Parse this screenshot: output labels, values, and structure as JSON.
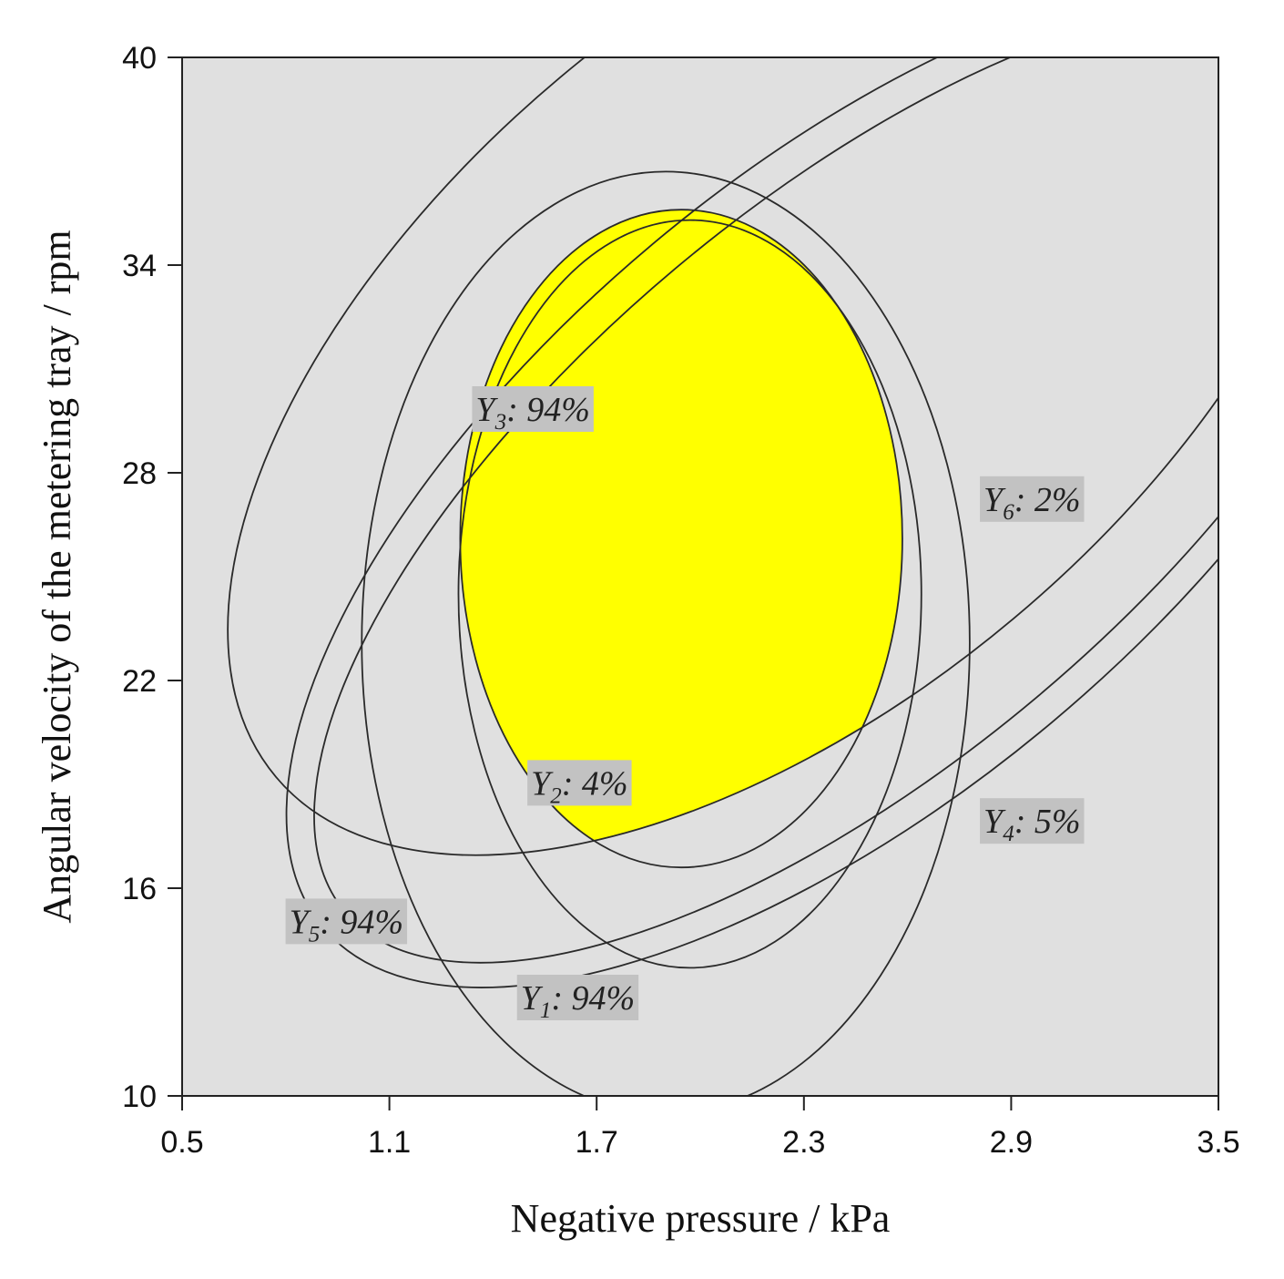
{
  "chart_data": {
    "type": "contour",
    "title": "",
    "xlabel": "Negative pressure / kPa",
    "ylabel": "Angular velocity of the metering tray / rpm",
    "xlim": [
      0.5,
      3.5
    ],
    "ylim": [
      10,
      40
    ],
    "x_ticks": [
      "0.5",
      "1.1",
      "1.7",
      "2.3",
      "2.9",
      "3.5"
    ],
    "y_ticks": [
      "10",
      "16",
      "22",
      "28",
      "34",
      "40"
    ],
    "grid": false,
    "background_color": "#e0e0e0",
    "optimal_region_color": "#ffff00",
    "contours": [
      {
        "id": "Y1",
        "symbol": "Y",
        "sub": "1",
        "value": "94%",
        "label": ": 94%",
        "cx": 1.97,
        "cy": 24.5,
        "rx": 0.67,
        "ry": 10.8,
        "rot": 0
      },
      {
        "id": "Y2",
        "symbol": "Y",
        "sub": "2",
        "value": "4%",
        "label": ": 4%",
        "cx": 2.45,
        "cy": 27.7,
        "rx": 1.93,
        "ry": 8.1,
        "rot": -40
      },
      {
        "id": "Y3",
        "symbol": "Y",
        "sub": "3",
        "value": "94%",
        "label": ": 94%",
        "cx": 1.945,
        "cy": 26.1,
        "rx": 0.64,
        "ry": 9.5,
        "rot": 0
      },
      {
        "id": "Y4",
        "symbol": "Y",
        "sub": "4",
        "value": "5%",
        "label": ": 5%",
        "cx": 2.44,
        "cy": 27.7,
        "rx": 2.0,
        "ry": 9.0,
        "rot": -40
      },
      {
        "id": "Y5",
        "symbol": "Y",
        "sub": "5",
        "value": "94%",
        "label": ": 94%",
        "cx": 1.9,
        "cy": 23.1,
        "rx": 0.88,
        "ry": 13.6,
        "rot": 0
      },
      {
        "id": "Y6",
        "symbol": "Y",
        "sub": "6",
        "value": "2%",
        "label": ": 2%",
        "cx": 2.25,
        "cy": 31.6,
        "rx": 1.93,
        "ry": 10.2,
        "rot": -40
      }
    ],
    "labels": [
      {
        "id": "Y3",
        "x": 1.35,
        "y": 29.5
      },
      {
        "id": "Y6",
        "x": 2.82,
        "y": 26.9
      },
      {
        "id": "Y2",
        "x": 1.51,
        "y": 18.7
      },
      {
        "id": "Y4",
        "x": 2.82,
        "y": 17.6
      },
      {
        "id": "Y5",
        "x": 0.81,
        "y": 14.7
      },
      {
        "id": "Y1",
        "x": 1.48,
        "y": 12.5
      }
    ]
  }
}
